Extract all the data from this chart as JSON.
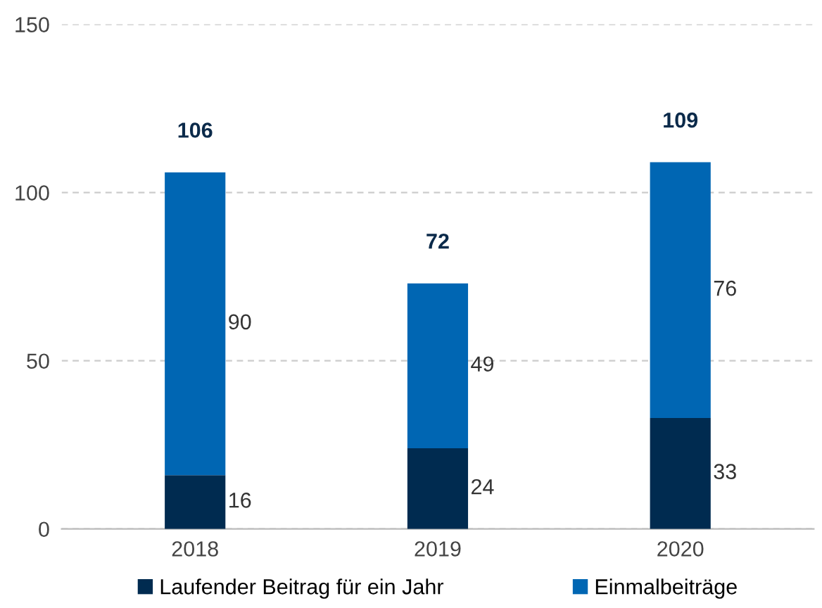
{
  "chart_data": {
    "type": "bar",
    "stacked": true,
    "categories": [
      "2018",
      "2019",
      "2020"
    ],
    "series": [
      {
        "name": "Laufender Beitrag für ein Jahr",
        "color": "#002b50",
        "values": [
          16,
          24,
          33
        ]
      },
      {
        "name": "Einmalbeiträge",
        "color": "#0066b3",
        "values": [
          90,
          49,
          76
        ]
      }
    ],
    "totals": [
      "106",
      "72",
      "109"
    ],
    "data_labels": true,
    "ylim": [
      0,
      150
    ],
    "yticks": [
      0,
      50,
      100,
      150
    ],
    "grid": "y",
    "legend": "bottom"
  }
}
